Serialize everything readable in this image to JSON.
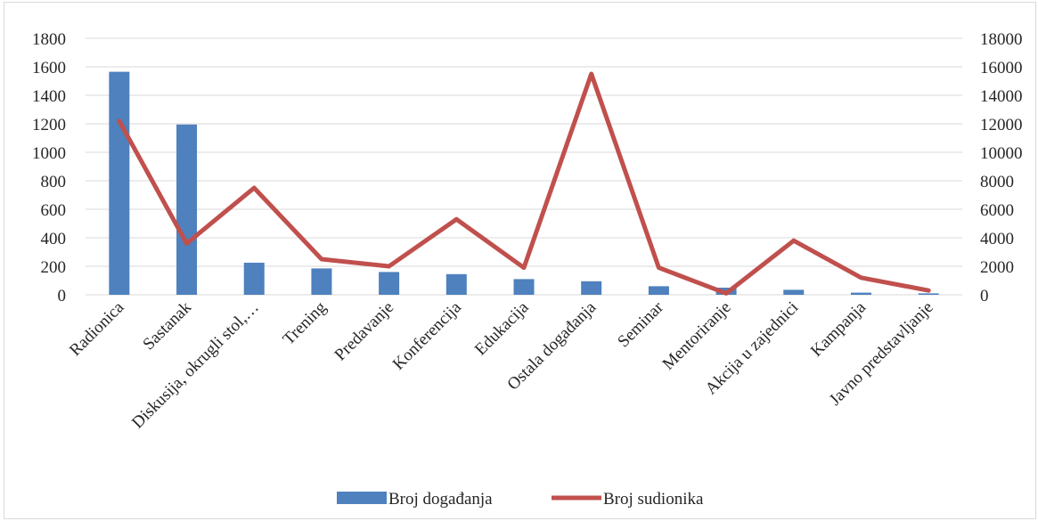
{
  "chart_data": {
    "type": "bar",
    "categories": [
      "Radionica",
      "Sastanak",
      "Diskusija, okrugli stol,…",
      "Trening",
      "Predavanje",
      "Konferencija",
      "Edukacija",
      "Ostala događanja",
      "Seminar",
      "Mentoriranje",
      "Akcija u zajednici",
      "Kampanja",
      "Javno predstavljanje"
    ],
    "series": [
      {
        "name": "Broj događanja",
        "type": "bar",
        "axis": "left",
        "color": "#4e81bd",
        "values": [
          1565,
          1195,
          225,
          185,
          160,
          145,
          110,
          95,
          60,
          50,
          35,
          15,
          10
        ]
      },
      {
        "name": "Broj sudionika",
        "type": "line",
        "axis": "right",
        "color": "#c0504d",
        "values": [
          12200,
          3600,
          7500,
          2500,
          2000,
          5300,
          1900,
          15500,
          1900,
          100,
          3800,
          1200,
          300
        ]
      }
    ],
    "y_left": {
      "min": 0,
      "max": 1800,
      "step": 200
    },
    "y_right": {
      "min": 0,
      "max": 18000,
      "step": 2000
    },
    "grid": true,
    "legend": "bottom"
  }
}
